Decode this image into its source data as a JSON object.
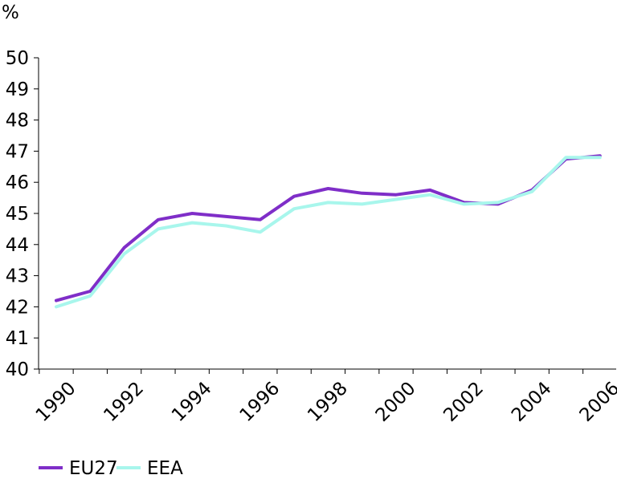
{
  "chart_data": {
    "type": "line",
    "ylabel": "%",
    "ylim": [
      40,
      50
    ],
    "yticks": [
      "40",
      "41",
      "42",
      "43",
      "44",
      "45",
      "46",
      "47",
      "48",
      "49",
      "50"
    ],
    "x": [
      1990,
      1991,
      1992,
      1993,
      1994,
      1995,
      1996,
      1997,
      1998,
      1999,
      2000,
      2001,
      2002,
      2003,
      2004,
      2005,
      2006
    ],
    "xtick_labels": [
      "1990",
      "1992",
      "1994",
      "1996",
      "1998",
      "2000",
      "2002",
      "2004",
      "2006"
    ],
    "series": [
      {
        "name": "EU27",
        "color": "#7f2ec8",
        "values": [
          42.2,
          42.5,
          43.9,
          44.8,
          45.0,
          44.9,
          44.8,
          45.55,
          45.8,
          45.65,
          45.6,
          45.75,
          45.35,
          45.3,
          45.75,
          46.75,
          46.85
        ]
      },
      {
        "name": "EEA",
        "color": "#a8f6ec",
        "values": [
          42.0,
          42.35,
          43.7,
          44.5,
          44.7,
          44.6,
          44.4,
          45.15,
          45.35,
          45.3,
          45.45,
          45.6,
          45.3,
          45.35,
          45.7,
          46.8,
          46.8
        ]
      }
    ],
    "legend_position": "bottom-left",
    "grid": false
  }
}
